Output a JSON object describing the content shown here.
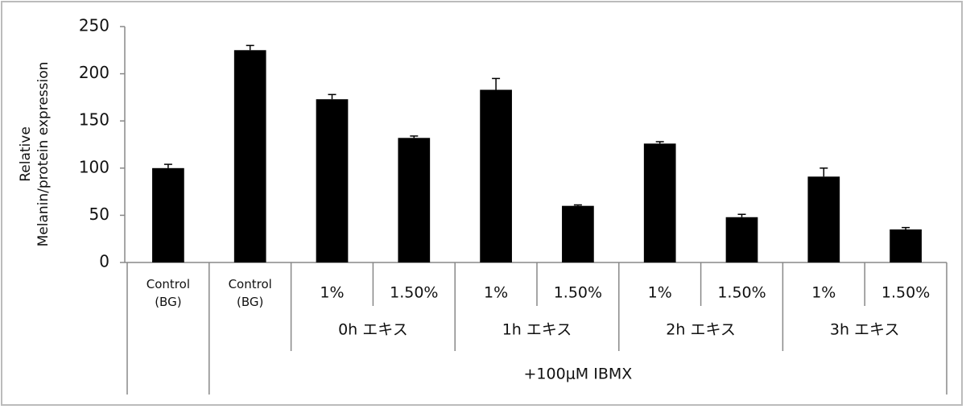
{
  "chart_data": {
    "type": "bar",
    "y_label": [
      "Relative",
      "Melanin/protein  expression"
    ],
    "categories": [
      "Control (BG)",
      "Control (BG)",
      "1%",
      "1.50%",
      "1%",
      "1.50%",
      "1%",
      "1.50%",
      "1%",
      "1.50%"
    ],
    "group_labels": [
      null,
      null,
      "0h  エキス",
      null,
      "1h  エキス",
      null,
      "2h  エキス",
      null,
      "3h  エキス",
      null
    ],
    "outer_labels": [
      null,
      "+100μM IBMX",
      null,
      null,
      null,
      null,
      null,
      null,
      null,
      null
    ],
    "values": [
      100,
      225,
      173,
      132,
      183,
      60,
      126,
      48,
      91,
      35
    ],
    "errors": [
      4,
      5,
      5,
      2,
      12,
      1,
      2,
      3,
      9,
      2
    ],
    "color": "#000000",
    "ylim": [
      0,
      250
    ],
    "yticks": [
      0,
      50,
      100,
      150,
      200,
      250
    ]
  }
}
